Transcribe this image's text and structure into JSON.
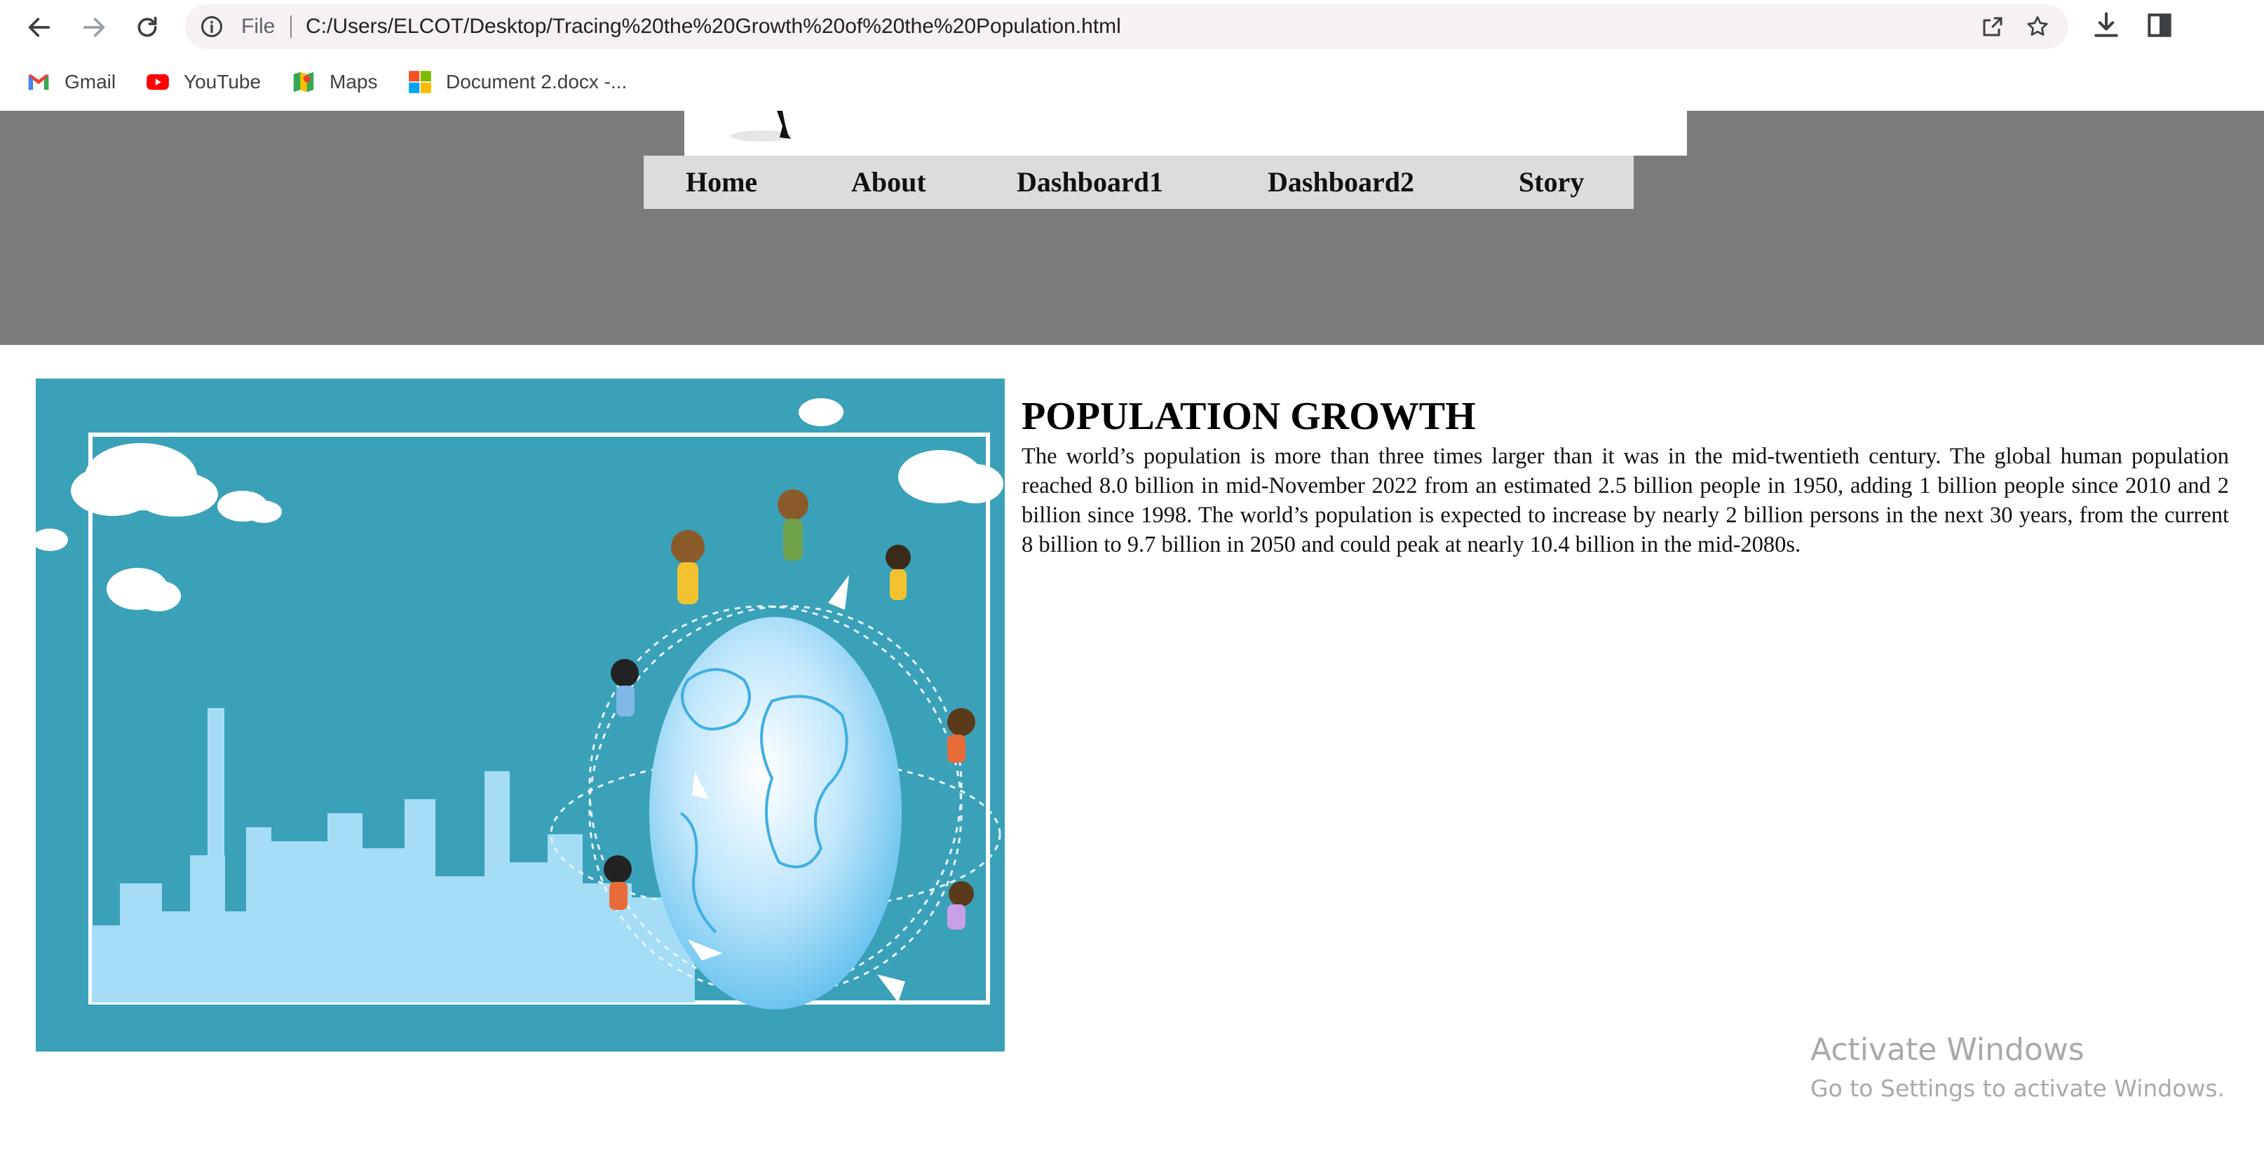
{
  "browser": {
    "scheme_label": "File",
    "url": "C:/Users/ELCOT/Desktop/Tracing%20the%20Growth%20of%20the%20Population.html",
    "bookmarks": [
      {
        "label": "Gmail",
        "icon": "gmail-icon"
      },
      {
        "label": "YouTube",
        "icon": "youtube-icon"
      },
      {
        "label": "Maps",
        "icon": "maps-icon"
      },
      {
        "label": "Document 2.docx -...",
        "icon": "office-icon"
      }
    ]
  },
  "nav": {
    "items": [
      "Home",
      "About",
      "Dashboard1",
      "Dashboard2",
      "Story"
    ]
  },
  "content": {
    "title": "POPULATION GROWTH",
    "body": "The world’s population is more than three times larger than it was in the mid-twentieth century. The global human population reached 8.0 billion in mid-November 2022 from an estimated 2.5 billion people in 1950, adding 1 billion people since 2010 and 2 billion since 1998. The world’s population is expected to increase by nearly 2 billion persons in the next 30 years, from the current 8 billion to 9.7 billion in 2050 and could peak at nearly 10.4 billion in the mid-2080s."
  },
  "watermark": {
    "title": "Activate Windows",
    "subtitle": "Go to Settings to activate Windows."
  },
  "colors": {
    "header_band": "#7b7c7a",
    "nav_bar": "#dcdcdc",
    "hero_bg": "#3aa1b8",
    "omnibox": "#f7f0f5"
  }
}
